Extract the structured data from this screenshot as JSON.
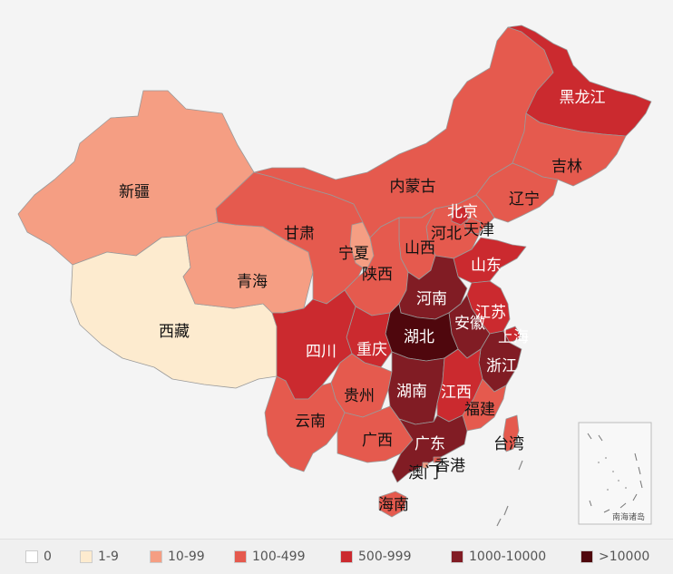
{
  "legend": [
    {
      "label": "0",
      "color": "#ffffff"
    },
    {
      "label": "1-9",
      "color": "#fdebcf"
    },
    {
      "label": "10-99",
      "color": "#f59e83"
    },
    {
      "label": "100-499",
      "color": "#e55a4e"
    },
    {
      "label": "500-999",
      "color": "#cb2a2f"
    },
    {
      "label": "1000-10000",
      "color": "#811c24"
    },
    {
      "label": ">10000",
      "color": "#4f070d"
    }
  ],
  "provinces": {
    "heilongjiang": {
      "name": "黑龙江",
      "level": 4
    },
    "jilin": {
      "name": "吉林",
      "level": 3
    },
    "liaoning": {
      "name": "辽宁",
      "level": 3
    },
    "neimenggu": {
      "name": "内蒙古",
      "level": 3
    },
    "beijing": {
      "name": "北京",
      "level": 4
    },
    "tianjin": {
      "name": "天津",
      "level": 3
    },
    "hebei": {
      "name": "河北",
      "level": 3
    },
    "shanxi": {
      "name": "山西",
      "level": 3
    },
    "shandong": {
      "name": "山东",
      "level": 4
    },
    "xinjiang": {
      "name": "新疆",
      "level": 2
    },
    "gansu": {
      "name": "甘肃",
      "level": 3
    },
    "ningxia": {
      "name": "宁夏",
      "level": 2
    },
    "qinghai": {
      "name": "青海",
      "level": 2
    },
    "shaanxi": {
      "name": "陕西",
      "level": 3
    },
    "henan": {
      "name": "河南",
      "level": 5
    },
    "xizang": {
      "name": "西藏",
      "level": 1
    },
    "sichuan": {
      "name": "四川",
      "level": 4
    },
    "chongqing": {
      "name": "重庆",
      "level": 4
    },
    "hubei": {
      "name": "湖北",
      "level": 6
    },
    "anhui": {
      "name": "安徽",
      "level": 5
    },
    "jiangsu": {
      "name": "江苏",
      "level": 4
    },
    "shanghai": {
      "name": "上海",
      "level": 4
    },
    "zhejiang": {
      "name": "浙江",
      "level": 5
    },
    "guizhou": {
      "name": "贵州",
      "level": 3
    },
    "hunan": {
      "name": "湖南",
      "level": 5
    },
    "jiangxi": {
      "name": "江西",
      "level": 4
    },
    "fujian": {
      "name": "福建",
      "level": 3
    },
    "yunnan": {
      "name": "云南",
      "level": 3
    },
    "guangxi": {
      "name": "广西",
      "level": 3
    },
    "guangdong": {
      "name": "广东",
      "level": 5
    },
    "taiwan": {
      "name": "台湾",
      "level": 3
    },
    "hongkong": {
      "name": "香港",
      "level": 3
    },
    "macau": {
      "name": "澳门",
      "level": 2
    },
    "hainan": {
      "name": "海南",
      "level": 3
    }
  },
  "inset": {
    "label": "南海诸岛"
  }
}
